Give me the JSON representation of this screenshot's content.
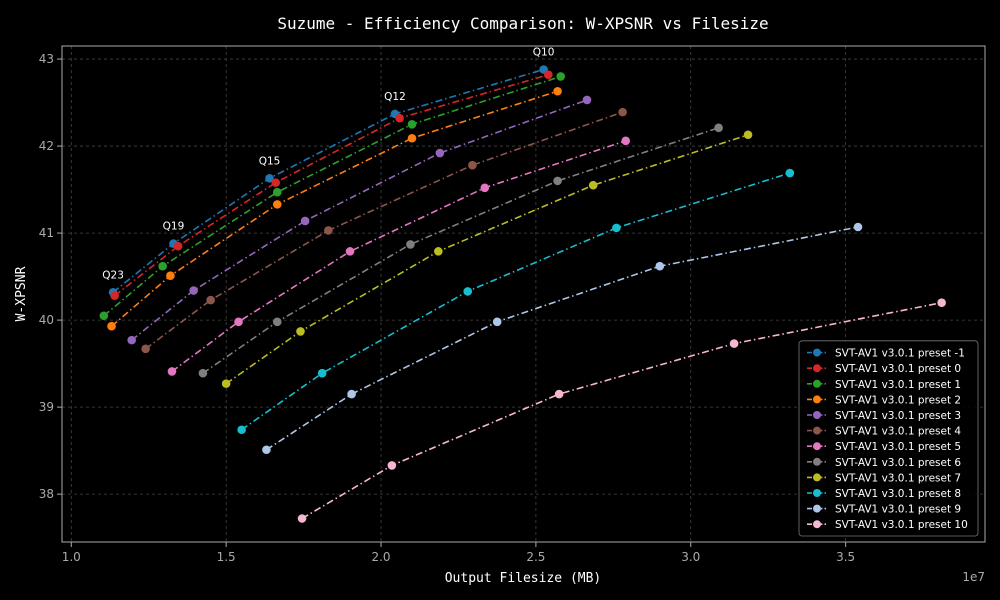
{
  "chart_data": {
    "type": "line",
    "title": "Suzume - Efficiency Comparison: W-XPSNR vs Filesize",
    "xlabel": "Output Filesize (MB)",
    "ylabel": "W-XPSNR",
    "x_exponent_label": "1e7",
    "xlim": [
      0.97,
      3.95
    ],
    "ylim": [
      37.45,
      43.15
    ],
    "x_ticks": [
      1.0,
      1.5,
      2.0,
      2.5,
      3.0,
      3.5
    ],
    "x_tick_labels": [
      "1.0",
      "1.5",
      "2.0",
      "2.5",
      "3.0",
      "3.5"
    ],
    "y_ticks": [
      38,
      39,
      40,
      41,
      42,
      43
    ],
    "y_tick_labels": [
      "38",
      "39",
      "40",
      "41",
      "42",
      "43"
    ],
    "grid": true,
    "line_style": "dash-dot",
    "legend_position": "bottom-right",
    "annotations": [
      {
        "text": "Q23",
        "x": 1.135,
        "y": 40.32
      },
      {
        "text": "Q19",
        "x": 1.33,
        "y": 40.88
      },
      {
        "text": "Q15",
        "x": 1.64,
        "y": 41.63
      },
      {
        "text": "Q12",
        "x": 2.045,
        "y": 42.37
      },
      {
        "text": "Q10",
        "x": 2.525,
        "y": 42.88
      }
    ],
    "series": [
      {
        "name": "SVT-AV1 v3.0.1 preset -1",
        "color": "#1f77b4",
        "x": [
          1.135,
          1.33,
          1.64,
          2.045,
          2.525
        ],
        "y": [
          40.32,
          40.88,
          41.63,
          42.37,
          42.88
        ]
      },
      {
        "name": "SVT-AV1 v3.0.1 preset 0",
        "color": "#d62728",
        "x": [
          1.14,
          1.345,
          1.66,
          2.06,
          2.54
        ],
        "y": [
          40.28,
          40.85,
          41.58,
          42.32,
          42.82
        ]
      },
      {
        "name": "SVT-AV1 v3.0.1 preset 1",
        "color": "#2ca02c",
        "x": [
          1.105,
          1.295,
          1.665,
          2.1,
          2.58
        ],
        "y": [
          40.05,
          40.62,
          41.47,
          42.25,
          42.8
        ]
      },
      {
        "name": "SVT-AV1 v3.0.1 preset 2",
        "color": "#ff7f0e",
        "x": [
          1.13,
          1.32,
          1.665,
          2.1,
          2.57
        ],
        "y": [
          39.93,
          40.51,
          41.33,
          42.09,
          42.63
        ]
      },
      {
        "name": "SVT-AV1 v3.0.1 preset 3",
        "color": "#9467bd",
        "x": [
          1.195,
          1.395,
          1.755,
          2.19,
          2.665
        ],
        "y": [
          39.77,
          40.34,
          41.14,
          41.92,
          42.53
        ]
      },
      {
        "name": "SVT-AV1 v3.0.1 preset 4",
        "color": "#8c564b",
        "x": [
          1.24,
          1.45,
          1.83,
          2.295,
          2.78
        ],
        "y": [
          39.67,
          40.23,
          41.03,
          41.78,
          42.39
        ]
      },
      {
        "name": "SVT-AV1 v3.0.1 preset 5",
        "color": "#e377c2",
        "x": [
          1.325,
          1.54,
          1.9,
          2.335,
          2.79
        ],
        "y": [
          39.41,
          39.98,
          40.79,
          41.52,
          42.06
        ]
      },
      {
        "name": "SVT-AV1 v3.0.1 preset 6",
        "color": "#7f7f7f",
        "x": [
          1.425,
          1.665,
          2.095,
          2.57,
          3.09
        ],
        "y": [
          39.39,
          39.98,
          40.87,
          41.6,
          42.21
        ]
      },
      {
        "name": "SVT-AV1 v3.0.1 preset 7",
        "color": "#bcbd22",
        "x": [
          1.5,
          1.74,
          2.185,
          2.685,
          3.185
        ],
        "y": [
          39.27,
          39.87,
          40.79,
          41.55,
          42.13
        ]
      },
      {
        "name": "SVT-AV1 v3.0.1 preset 8",
        "color": "#17becf",
        "x": [
          1.55,
          1.81,
          2.28,
          2.76,
          3.32
        ],
        "y": [
          38.74,
          39.39,
          40.33,
          41.06,
          41.69
        ]
      },
      {
        "name": "SVT-AV1 v3.0.1 preset 9",
        "color": "#aec7e8",
        "x": [
          1.63,
          1.905,
          2.375,
          2.9,
          3.54
        ],
        "y": [
          38.51,
          39.15,
          39.98,
          40.62,
          41.07
        ]
      },
      {
        "name": "SVT-AV1 v3.0.1 preset 10",
        "color": "#f7b6d2",
        "x": [
          1.745,
          2.035,
          2.575,
          3.14,
          3.81
        ],
        "y": [
          37.72,
          38.33,
          39.15,
          39.73,
          40.2
        ]
      }
    ]
  }
}
